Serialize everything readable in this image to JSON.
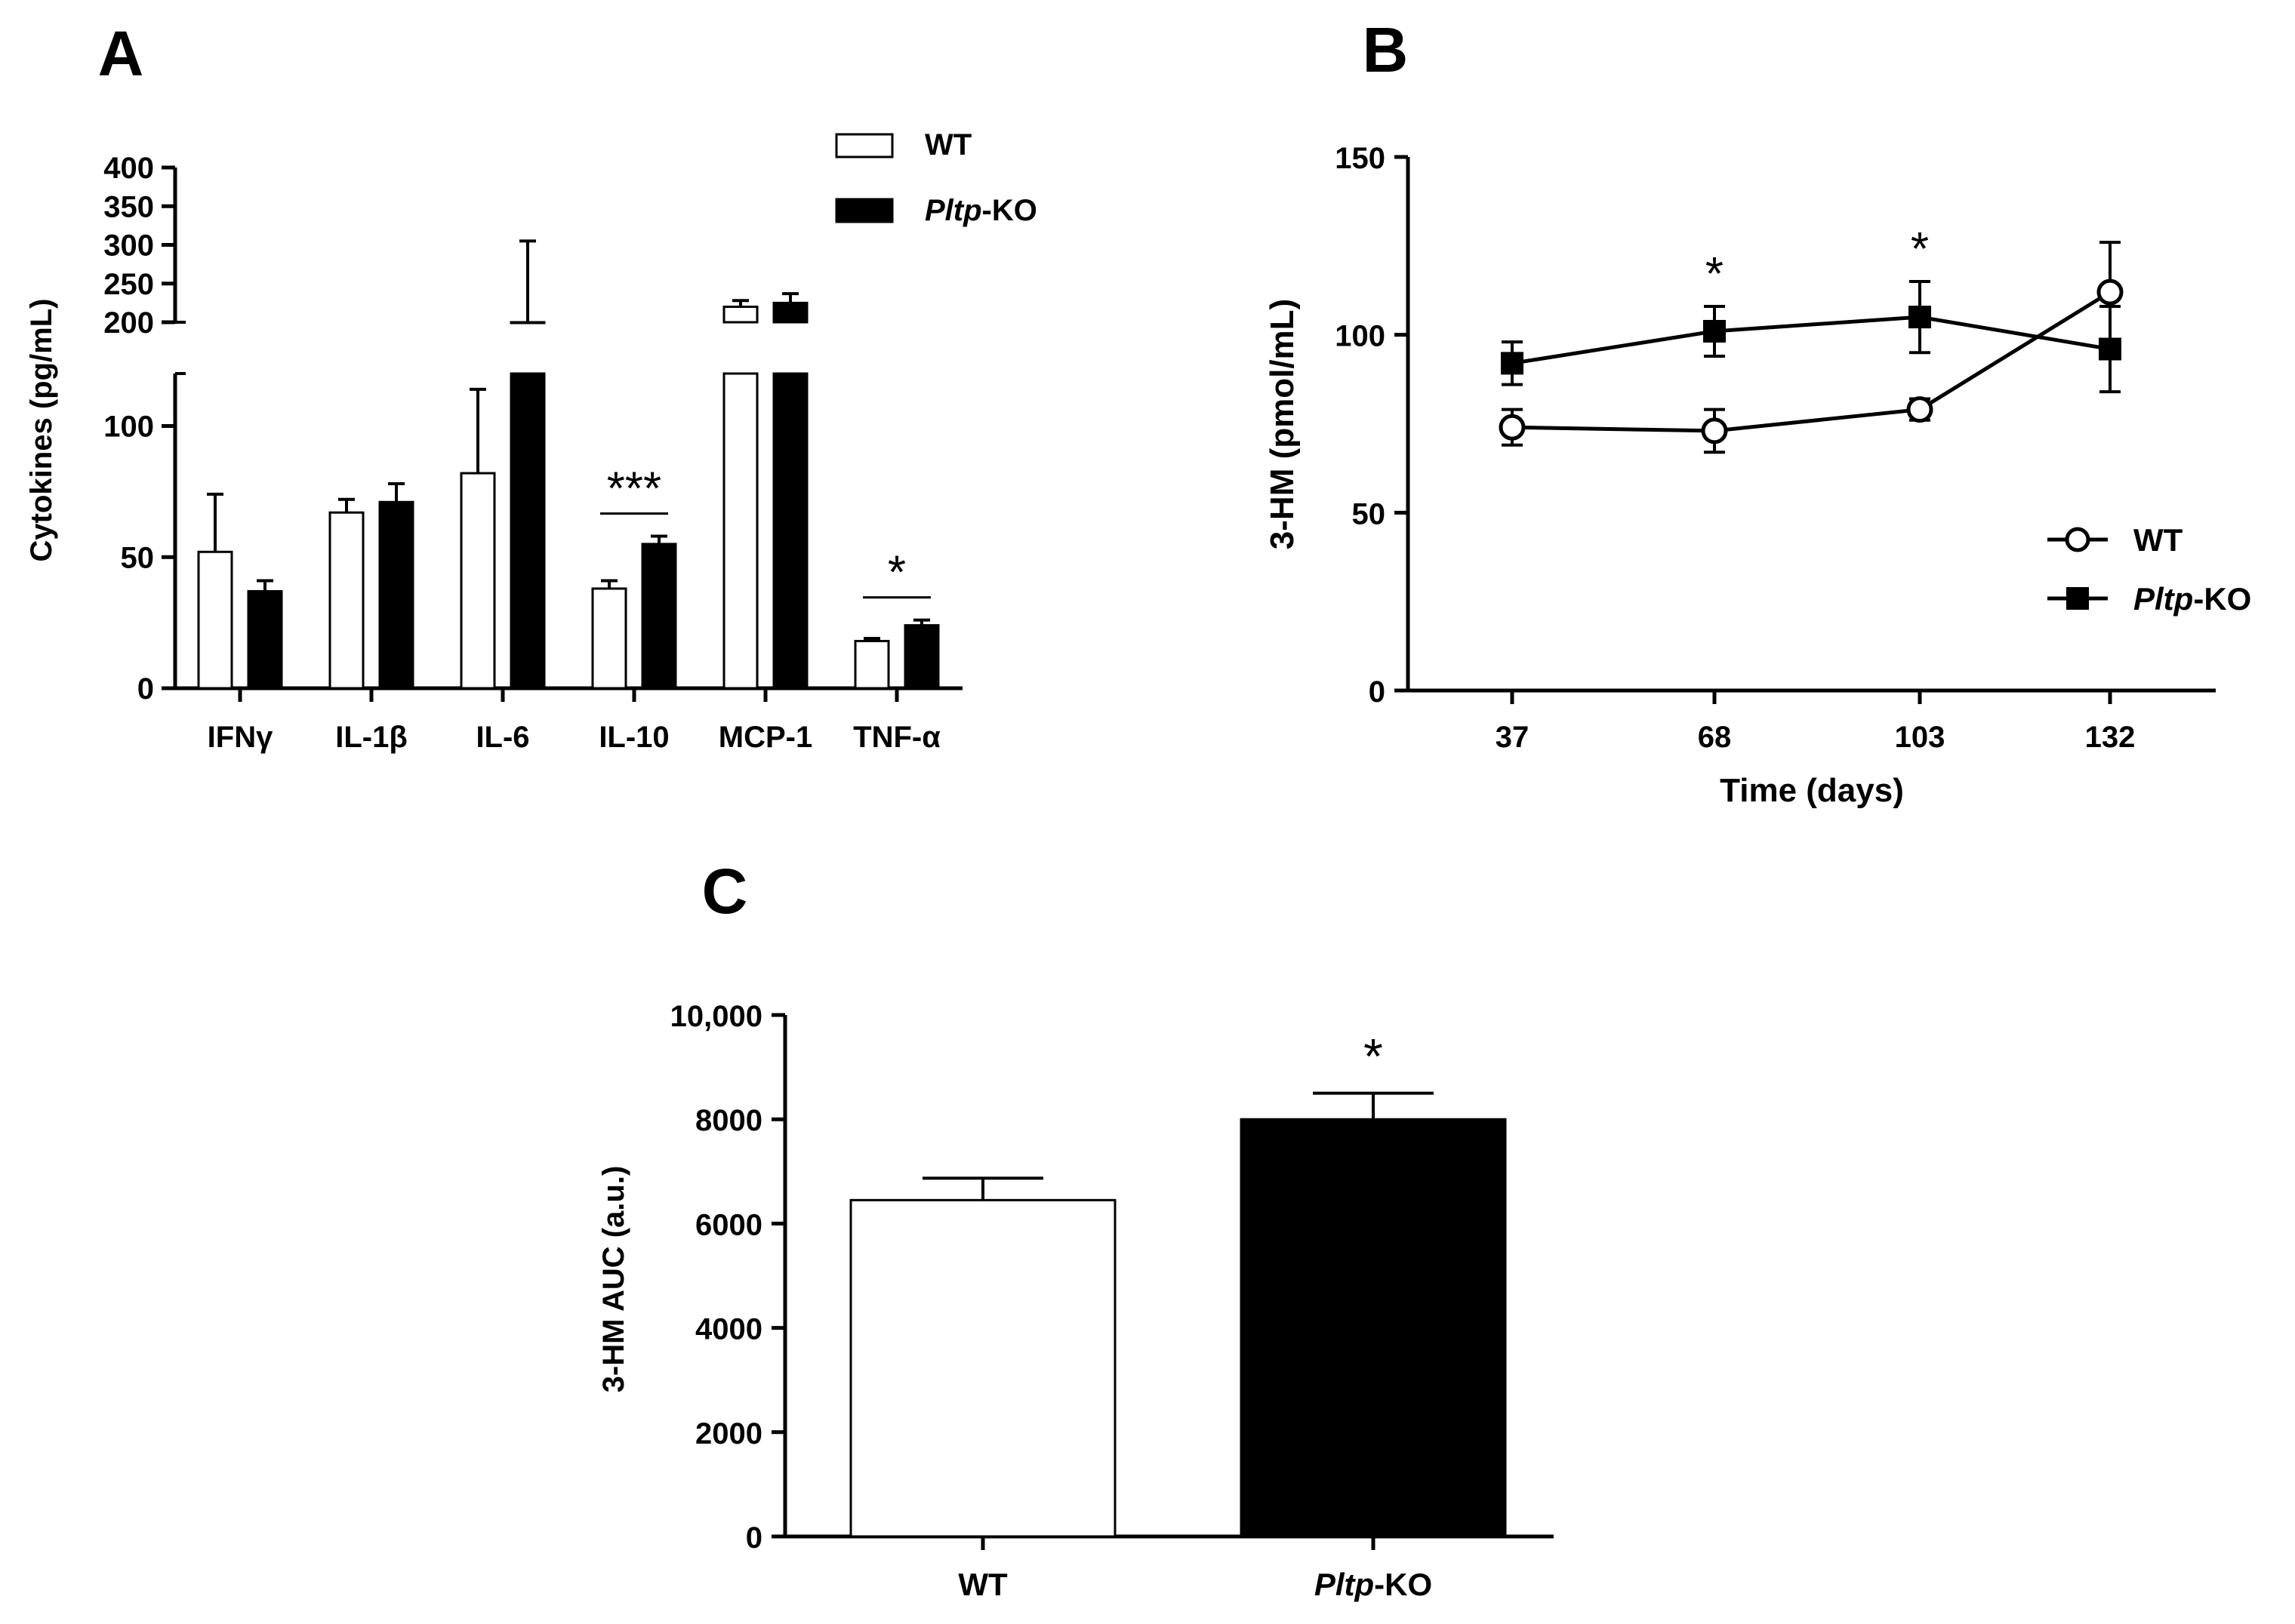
{
  "chart_data": [
    {
      "panel": "A",
      "type": "bar",
      "ylabel": "Cytokines (pg/mL)",
      "categories": [
        "IFNγ",
        "IL-1β",
        "IL-6",
        "IL-10",
        "MCP-1",
        "TNF-α"
      ],
      "series": [
        {
          "name": "WT",
          "color": "#ffffff",
          "values": [
            52,
            67,
            82,
            38,
            220,
            18
          ],
          "errors": [
            22,
            5,
            32,
            3,
            8,
            1
          ]
        },
        {
          "name": "Pltp-KO",
          "color": "#000000",
          "values": [
            37,
            71,
            200,
            55,
            225,
            24
          ],
          "errors": [
            4,
            7,
            105,
            3,
            12,
            2
          ]
        }
      ],
      "axis_break": {
        "lower_range": [
          0,
          120
        ],
        "upper_range": [
          200,
          400
        ]
      },
      "lower_ticks": [
        0,
        50,
        100
      ],
      "upper_ticks": [
        200,
        250,
        300,
        350,
        400
      ],
      "annotations": [
        {
          "category": "IL-10",
          "text": "***"
        },
        {
          "category": "TNF-α",
          "text": "*"
        }
      ]
    },
    {
      "panel": "B",
      "type": "line",
      "xlabel": "Time (days)",
      "ylabel": "3-HM (pmol/mL)",
      "x": [
        37,
        68,
        103,
        132
      ],
      "ylim": [
        0,
        150
      ],
      "yticks": [
        0,
        50,
        100,
        150
      ],
      "series": [
        {
          "name": "WT",
          "marker": "open-circle",
          "values": [
            74,
            73,
            79,
            112
          ],
          "errors": [
            5,
            6,
            3,
            14
          ]
        },
        {
          "name": "Pltp-KO",
          "marker": "filled-square",
          "values": [
            92,
            101,
            105,
            96
          ],
          "errors": [
            6,
            7,
            10,
            12
          ]
        }
      ],
      "annotations": [
        {
          "x": 68,
          "text": "*"
        },
        {
          "x": 103,
          "text": "*"
        }
      ]
    },
    {
      "panel": "C",
      "type": "bar",
      "ylabel": "3-HM AUC (a.u.)",
      "categories": [
        "WT",
        "Pltp-KO"
      ],
      "values": [
        6450,
        8000
      ],
      "errors": [
        420,
        500
      ],
      "colors": [
        "#ffffff",
        "#000000"
      ],
      "ylim": [
        0,
        10000
      ],
      "yticks": [
        0,
        2000,
        4000,
        6000,
        8000,
        10000
      ],
      "ytick_labels": [
        "0",
        "2000",
        "4000",
        "6000",
        "8000",
        "10,000"
      ],
      "annotations": [
        {
          "category": "Pltp-KO",
          "text": "*"
        }
      ]
    }
  ],
  "legend": {
    "wt_label": "WT",
    "ko_label_italic": "Pltp",
    "ko_label_suffix": "-KO"
  }
}
